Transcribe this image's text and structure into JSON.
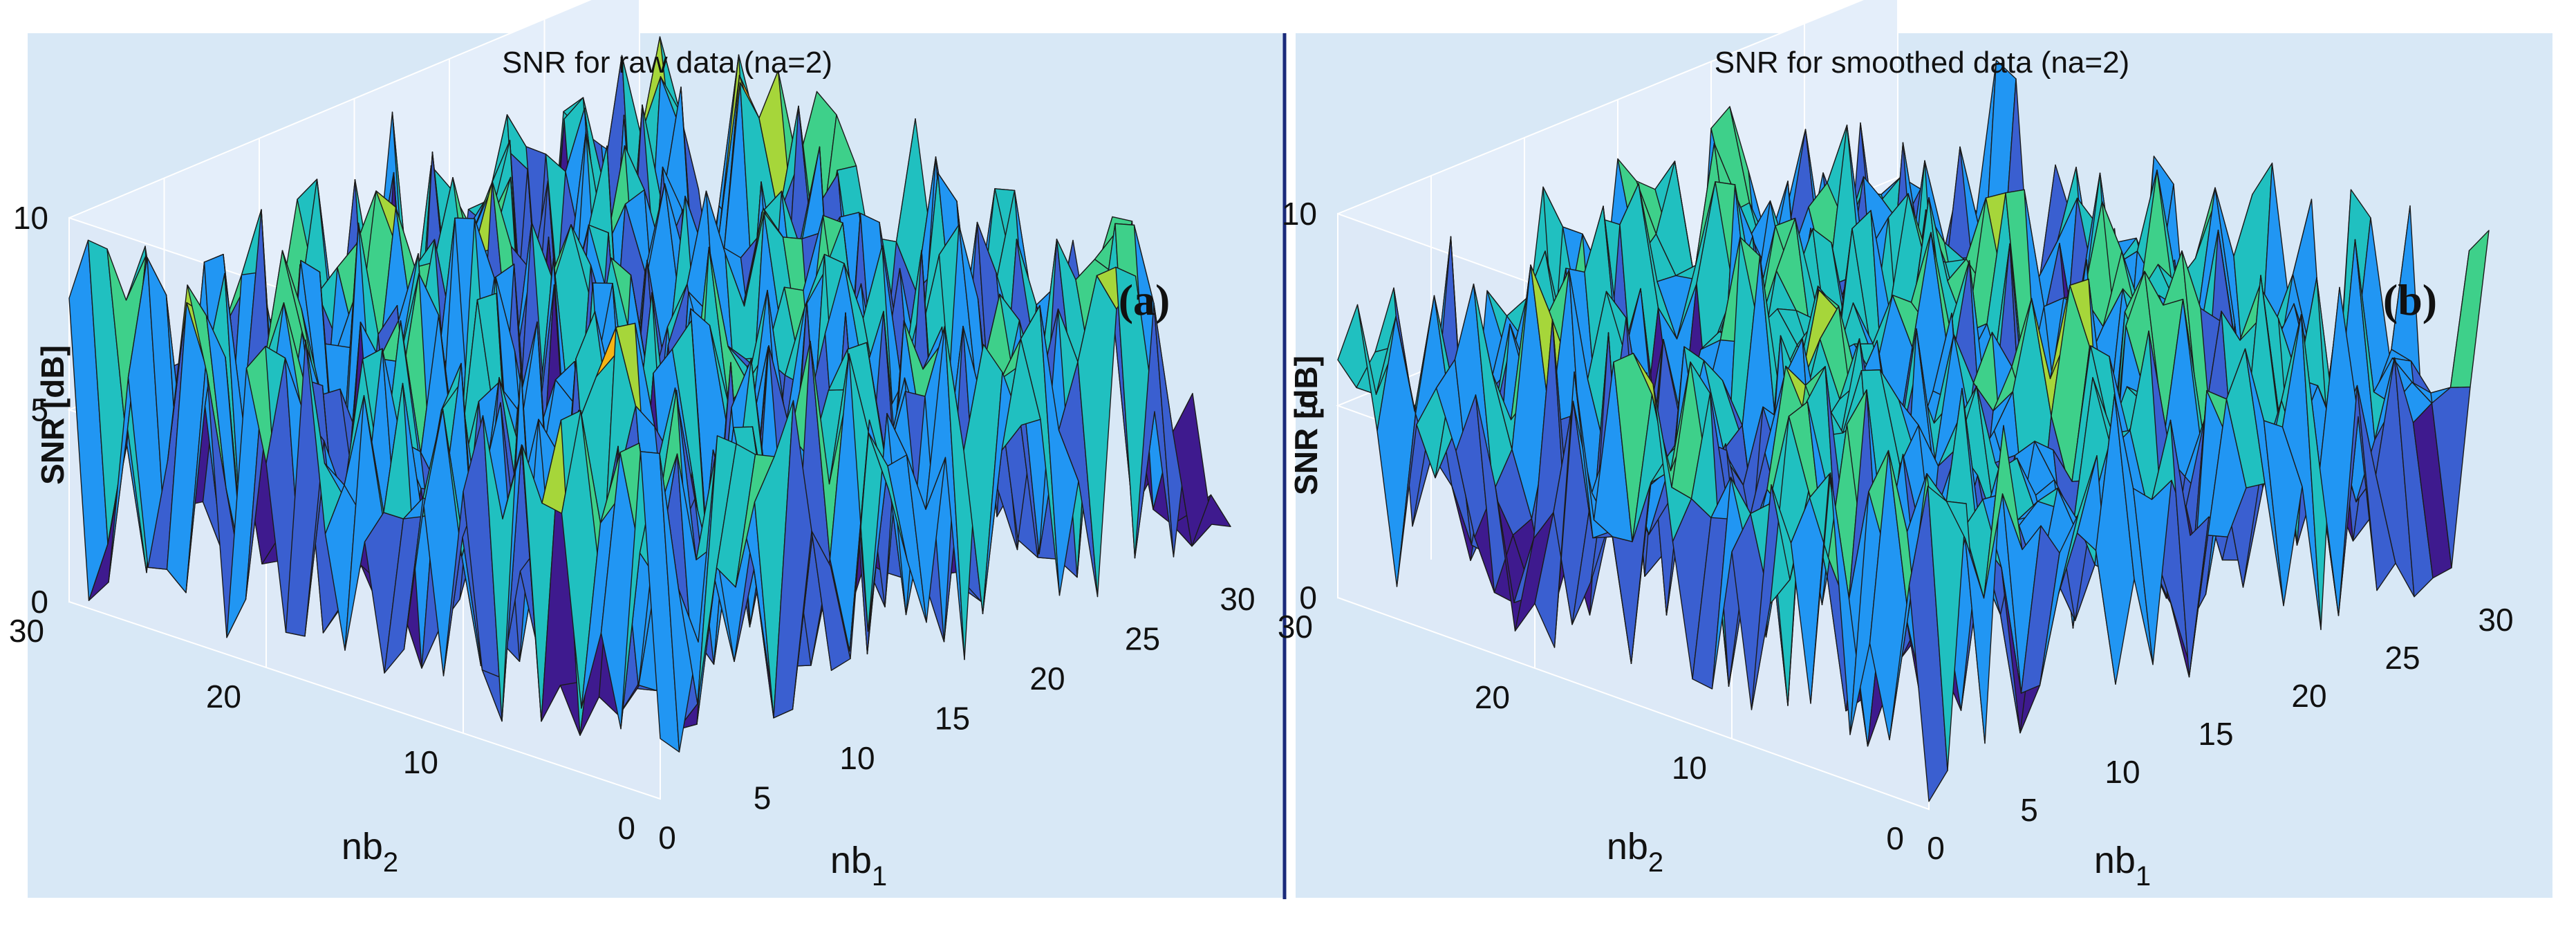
{
  "chart_data": [
    {
      "type": "surface",
      "title": "SNR for raw data (na=2)",
      "annotation": "(a)",
      "xlabel": "nb",
      "xlabel_sub": "1",
      "ylabel": "nb",
      "ylabel_sub": "2",
      "zlabel": "SNR [dB]",
      "x_ticks": [
        "0",
        "5",
        "10",
        "15",
        "20",
        "25",
        "30"
      ],
      "y_ticks": [
        "0",
        "10",
        "20",
        "30"
      ],
      "z_ticks": [
        "0",
        "5",
        "10"
      ],
      "xlim": [
        0,
        30
      ],
      "ylim": [
        0,
        30
      ],
      "zlim": [
        0,
        10
      ],
      "colormap": [
        "#3e1a8e",
        "#3a5fd0",
        "#2196f3",
        "#20c0c0",
        "#3ed08a",
        "#a6d63a",
        "#f5b414",
        "#f5e01a"
      ],
      "background": "#d8e8f6",
      "surface_seed": 7,
      "surface_smoothing": 0
    },
    {
      "type": "surface",
      "title": "SNR for smoothed data (na=2)",
      "annotation": "(b)",
      "xlabel": "nb",
      "xlabel_sub": "1",
      "ylabel": "nb",
      "ylabel_sub": "2",
      "zlabel": "SNR [dB]",
      "x_ticks": [
        "0",
        "5",
        "10",
        "15",
        "20",
        "25",
        "30"
      ],
      "y_ticks": [
        "0",
        "10",
        "20",
        "30"
      ],
      "z_ticks": [
        "0",
        "5",
        "10"
      ],
      "xlim": [
        0,
        30
      ],
      "ylim": [
        0,
        30
      ],
      "zlim": [
        0,
        10
      ],
      "colormap": [
        "#3e1a8e",
        "#3a5fd0",
        "#2196f3",
        "#20c0c0",
        "#3ed08a",
        "#a6d63a",
        "#f5b414",
        "#f5e01a"
      ],
      "background": "#d8e8f6",
      "surface_seed": 19,
      "surface_smoothing": 1
    }
  ]
}
